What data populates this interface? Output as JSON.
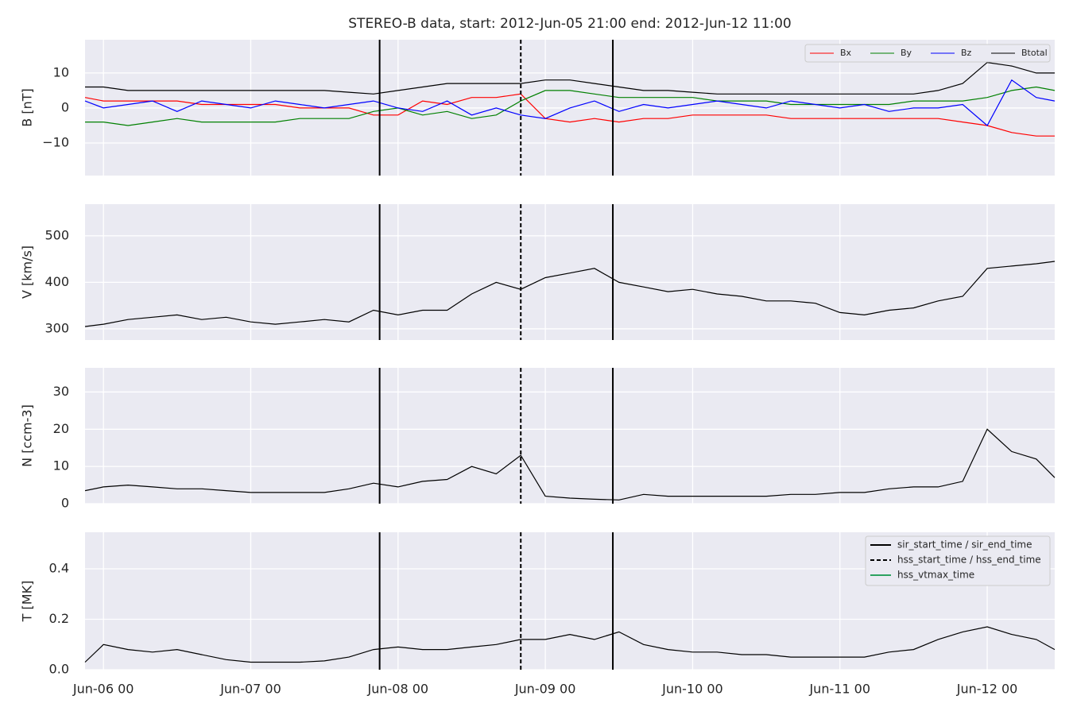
{
  "title": "STEREO-B data, start: 2012-Jun-05 21:00  end: 2012-Jun-12 11:00",
  "events": [
    {
      "name": "sir_start_time / sir_end_time",
      "color": "#000000",
      "style": "solid",
      "x": [
        "Jun-07 21",
        "Jun-09 11"
      ]
    },
    {
      "name": "hss_start_time / hss_end_time",
      "color": "#000000",
      "style": "dashed",
      "x": [
        "Jun-08 20"
      ]
    },
    {
      "name": "hss_vtmax_time",
      "color": "#2ca25f",
      "style": "solid",
      "x": []
    }
  ],
  "chart_data": [
    {
      "type": "line",
      "ylabel": "B [nT]",
      "legend": "upper right",
      "x": [
        "Jun-05 21",
        "Jun-06 00",
        "Jun-06 04",
        "Jun-06 08",
        "Jun-06 12",
        "Jun-06 16",
        "Jun-06 20",
        "Jun-07 00",
        "Jun-07 04",
        "Jun-07 08",
        "Jun-07 12",
        "Jun-07 16",
        "Jun-07 20",
        "Jun-08 00",
        "Jun-08 04",
        "Jun-08 08",
        "Jun-08 12",
        "Jun-08 16",
        "Jun-08 20",
        "Jun-09 00",
        "Jun-09 04",
        "Jun-09 08",
        "Jun-09 12",
        "Jun-09 16",
        "Jun-09 20",
        "Jun-10 00",
        "Jun-10 04",
        "Jun-10 08",
        "Jun-10 12",
        "Jun-10 16",
        "Jun-10 20",
        "Jun-11 00",
        "Jun-11 04",
        "Jun-11 08",
        "Jun-11 12",
        "Jun-11 16",
        "Jun-11 20",
        "Jun-12 00",
        "Jun-12 04",
        "Jun-12 08",
        "Jun-12 11"
      ],
      "xlim": [
        "Jun-05 21",
        "Jun-12 11"
      ],
      "xticks": [
        "Jun-06 00",
        "Jun-07 00",
        "Jun-08 00",
        "Jun-09 00",
        "Jun-10 00",
        "Jun-11 00",
        "Jun-12 00"
      ],
      "ylim": [
        -19.3,
        19.5
      ],
      "yticks": [
        {
          "value": -10,
          "label": "−10"
        },
        0,
        10
      ],
      "series": [
        {
          "name": "Bx",
          "color": "#ff0000",
          "values": [
            3,
            2,
            2,
            2,
            2,
            1,
            1,
            1,
            1,
            0,
            0,
            0,
            -2,
            -2,
            2,
            1,
            3,
            3,
            4,
            -3,
            -4,
            -3,
            -4,
            -3,
            -3,
            -2,
            -2,
            -2,
            -2,
            -3,
            -3,
            -3,
            -3,
            -3,
            -3,
            -3,
            -4,
            -5,
            -7,
            -8,
            -8
          ]
        },
        {
          "name": "By",
          "color": "#008000",
          "values": [
            -4,
            -4,
            -5,
            -4,
            -3,
            -4,
            -4,
            -4,
            -4,
            -3,
            -3,
            -3,
            -1,
            0,
            -2,
            -1,
            -3,
            -2,
            2,
            5,
            5,
            4,
            3,
            3,
            3,
            3,
            2,
            2,
            2,
            1,
            1,
            1,
            1,
            1,
            2,
            2,
            2,
            3,
            5,
            6,
            5
          ]
        },
        {
          "name": "Bz",
          "color": "#0000ff",
          "values": [
            2,
            0,
            1,
            2,
            -1,
            2,
            1,
            0,
            2,
            1,
            0,
            1,
            2,
            0,
            -1,
            2,
            -2,
            0,
            -2,
            -3,
            0,
            2,
            -1,
            1,
            0,
            1,
            2,
            1,
            0,
            2,
            1,
            0,
            1,
            -1,
            0,
            0,
            1,
            -5,
            8,
            3,
            2
          ]
        },
        {
          "name": "Btotal",
          "color": "#000000",
          "values": [
            6,
            6,
            5,
            5,
            5,
            5,
            5,
            5,
            5,
            5,
            5,
            4.5,
            4,
            5,
            6,
            7,
            7,
            7,
            7,
            8,
            8,
            7,
            6,
            5,
            5,
            4.5,
            4,
            4,
            4,
            4,
            4,
            4,
            4,
            4,
            4,
            5,
            7,
            13,
            12,
            10,
            10
          ]
        }
      ]
    },
    {
      "type": "line",
      "ylabel": "V [km/s]",
      "color": "#000000",
      "x": [
        "Jun-05 21",
        "Jun-06 00",
        "Jun-06 04",
        "Jun-06 08",
        "Jun-06 12",
        "Jun-06 16",
        "Jun-06 20",
        "Jun-07 00",
        "Jun-07 04",
        "Jun-07 08",
        "Jun-07 12",
        "Jun-07 16",
        "Jun-07 20",
        "Jun-08 00",
        "Jun-08 04",
        "Jun-08 08",
        "Jun-08 12",
        "Jun-08 16",
        "Jun-08 20",
        "Jun-09 00",
        "Jun-09 04",
        "Jun-09 08",
        "Jun-09 12",
        "Jun-09 16",
        "Jun-09 20",
        "Jun-10 00",
        "Jun-10 04",
        "Jun-10 08",
        "Jun-10 12",
        "Jun-10 16",
        "Jun-10 20",
        "Jun-11 00",
        "Jun-11 04",
        "Jun-11 08",
        "Jun-11 12",
        "Jun-11 16",
        "Jun-11 20",
        "Jun-12 00",
        "Jun-12 04",
        "Jun-12 08",
        "Jun-12 11"
      ],
      "xlim": [
        "Jun-05 21",
        "Jun-12 11"
      ],
      "xticks": [
        "Jun-06 00",
        "Jun-07 00",
        "Jun-08 00",
        "Jun-09 00",
        "Jun-10 00",
        "Jun-11 00",
        "Jun-12 00"
      ],
      "ylim": [
        276,
        568
      ],
      "yticks": [
        300,
        400,
        500
      ],
      "values": [
        305,
        310,
        320,
        325,
        330,
        320,
        325,
        315,
        310,
        315,
        320,
        315,
        340,
        330,
        340,
        340,
        375,
        400,
        385,
        410,
        420,
        430,
        400,
        390,
        380,
        385,
        375,
        370,
        360,
        360,
        355,
        335,
        330,
        340,
        345,
        360,
        370,
        430,
        435,
        440,
        445
      ]
    },
    {
      "type": "line",
      "ylabel": "N [ccm-3]",
      "color": "#000000",
      "x": [
        "Jun-05 21",
        "Jun-06 00",
        "Jun-06 04",
        "Jun-06 08",
        "Jun-06 12",
        "Jun-06 16",
        "Jun-06 20",
        "Jun-07 00",
        "Jun-07 04",
        "Jun-07 08",
        "Jun-07 12",
        "Jun-07 16",
        "Jun-07 20",
        "Jun-08 00",
        "Jun-08 04",
        "Jun-08 08",
        "Jun-08 12",
        "Jun-08 16",
        "Jun-08 20",
        "Jun-09 00",
        "Jun-09 04",
        "Jun-09 08",
        "Jun-09 12",
        "Jun-09 16",
        "Jun-09 20",
        "Jun-10 00",
        "Jun-10 04",
        "Jun-10 08",
        "Jun-10 12",
        "Jun-10 16",
        "Jun-10 20",
        "Jun-11 00",
        "Jun-11 04",
        "Jun-11 08",
        "Jun-11 12",
        "Jun-11 16",
        "Jun-11 20",
        "Jun-12 00",
        "Jun-12 04",
        "Jun-12 08",
        "Jun-12 11"
      ],
      "xlim": [
        "Jun-05 21",
        "Jun-12 11"
      ],
      "xticks": [
        "Jun-06 00",
        "Jun-07 00",
        "Jun-08 00",
        "Jun-09 00",
        "Jun-10 00",
        "Jun-11 00",
        "Jun-12 00"
      ],
      "ylim": [
        0,
        36.5
      ],
      "yticks": [
        0,
        10,
        20,
        30
      ],
      "values": [
        3.5,
        4.5,
        5,
        4.5,
        4,
        4,
        3.5,
        3,
        3,
        3,
        3,
        4,
        5.5,
        4.5,
        6,
        6.5,
        10,
        8,
        13,
        2,
        1.5,
        1.2,
        1,
        2.5,
        2,
        2,
        2,
        2,
        2,
        2.5,
        2.5,
        3,
        3,
        4,
        4.5,
        4.5,
        6,
        20,
        14,
        12,
        7
      ]
    },
    {
      "type": "line",
      "ylabel": "T [MK]",
      "color": "#000000",
      "legend": "upper right",
      "x": [
        "Jun-05 21",
        "Jun-06 00",
        "Jun-06 04",
        "Jun-06 08",
        "Jun-06 12",
        "Jun-06 16",
        "Jun-06 20",
        "Jun-07 00",
        "Jun-07 04",
        "Jun-07 08",
        "Jun-07 12",
        "Jun-07 16",
        "Jun-07 20",
        "Jun-08 00",
        "Jun-08 04",
        "Jun-08 08",
        "Jun-08 12",
        "Jun-08 16",
        "Jun-08 20",
        "Jun-09 00",
        "Jun-09 04",
        "Jun-09 08",
        "Jun-09 12",
        "Jun-09 16",
        "Jun-09 20",
        "Jun-10 00",
        "Jun-10 04",
        "Jun-10 08",
        "Jun-10 12",
        "Jun-10 16",
        "Jun-10 20",
        "Jun-11 00",
        "Jun-11 04",
        "Jun-11 08",
        "Jun-11 12",
        "Jun-11 16",
        "Jun-11 20",
        "Jun-12 00",
        "Jun-12 04",
        "Jun-12 08",
        "Jun-12 11"
      ],
      "xlim": [
        "Jun-05 21",
        "Jun-12 11"
      ],
      "xticks": [
        "Jun-06 00",
        "Jun-07 00",
        "Jun-08 00",
        "Jun-09 00",
        "Jun-10 00",
        "Jun-11 00",
        "Jun-12 00"
      ],
      "ylim": [
        0,
        0.545
      ],
      "yticks": [
        {
          "value": 0,
          "label": "0.0"
        },
        0.2,
        0.4
      ],
      "values": [
        0.03,
        0.1,
        0.08,
        0.07,
        0.08,
        0.06,
        0.04,
        0.03,
        0.03,
        0.03,
        0.035,
        0.05,
        0.08,
        0.09,
        0.08,
        0.08,
        0.09,
        0.1,
        0.12,
        0.12,
        0.14,
        0.12,
        0.15,
        0.1,
        0.08,
        0.07,
        0.07,
        0.06,
        0.06,
        0.05,
        0.05,
        0.05,
        0.05,
        0.07,
        0.08,
        0.12,
        0.15,
        0.17,
        0.14,
        0.12,
        0.08
      ]
    }
  ]
}
